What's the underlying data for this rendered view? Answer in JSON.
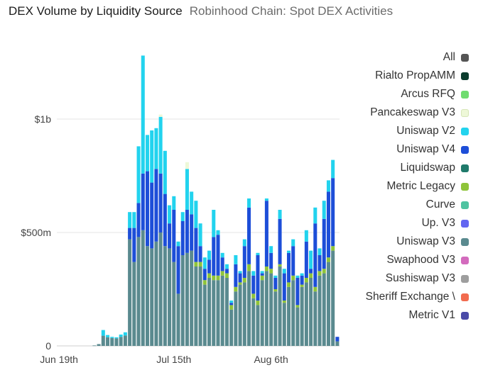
{
  "header": {
    "title": "DEX Volume by Liquidity Source",
    "subtitle": "Robinhood Chain: Spot DEX Activities"
  },
  "legend": [
    {
      "label": "All",
      "color": "#555555"
    },
    {
      "label": "Rialto PropAMM",
      "color": "#0b3d2e"
    },
    {
      "label": "Arcus RFQ",
      "color": "#6fdc6f"
    },
    {
      "label": "Pancakeswap V3",
      "color": "#eef8d8"
    },
    {
      "label": "Uniswap V2",
      "color": "#22d3ee"
    },
    {
      "label": "Uniswap V4",
      "color": "#1d4ed8"
    },
    {
      "label": "Liquidswap",
      "color": "#1f7a6b"
    },
    {
      "label": "Metric Legacy",
      "color": "#8fc43a"
    },
    {
      "label": "Curve",
      "color": "#4fc3a1"
    },
    {
      "label": "Up. V3",
      "color": "#6366f1"
    },
    {
      "label": "Uniswap V3",
      "color": "#5a8a8f"
    },
    {
      "label": "Swaphood V3",
      "color": "#d36bbd"
    },
    {
      "label": "Sushiswap V3",
      "color": "#9e9e9e"
    },
    {
      "label": "Sheriff Exchange \\",
      "color": "#f26b4f"
    },
    {
      "label": "Metric V1",
      "color": "#4b4ba8"
    }
  ],
  "chart_data": {
    "type": "bar",
    "stacked": true,
    "y_tick_labels": [
      "0",
      "$500m",
      "$1b"
    ],
    "ylim": [
      0,
      1400
    ],
    "y_ticks": [
      0,
      500,
      1000
    ],
    "y_unit": "million USD",
    "x_tick_labels": [
      "Jun 19th",
      "Jul 15th",
      "Aug 6th"
    ],
    "x_tick_index": [
      0,
      26,
      48
    ],
    "grid": true,
    "legend_position": "right",
    "series_order": [
      "Uniswap V3",
      "Metric Legacy",
      "Uniswap V4",
      "Uniswap V2",
      "Pancakeswap V3"
    ],
    "series_colors": {
      "Uniswap V3": "#5a8a8f",
      "Metric Legacy": "#8fc43a",
      "Uniswap V4": "#1d4ed8",
      "Uniswap V2": "#22d3ee",
      "Pancakeswap V3": "#eef8d8"
    },
    "days": [
      {
        "Uniswap V3": 0
      },
      {
        "Uniswap V3": 0
      },
      {
        "Uniswap V3": 0
      },
      {
        "Uniswap V3": 0
      },
      {
        "Uniswap V3": 0
      },
      {
        "Uniswap V3": 0
      },
      {
        "Uniswap V3": 0
      },
      {
        "Uniswap V3": 0
      },
      {
        "Uniswap V3": 2
      },
      {
        "Uniswap V3": 8
      },
      {
        "Uniswap V3": 45,
        "Uniswap V2": 25
      },
      {
        "Uniswap V3": 38,
        "Uniswap V2": 10
      },
      {
        "Uniswap V3": 35,
        "Uniswap V2": 5
      },
      {
        "Uniswap V3": 33,
        "Uniswap V2": 5
      },
      {
        "Uniswap V3": 40,
        "Uniswap V2": 10
      },
      {
        "Uniswap V3": 46,
        "Uniswap V2": 14
      },
      {
        "Uniswap V3": 470,
        "Uniswap V4": 50,
        "Uniswap V2": 70
      },
      {
        "Uniswap V3": 370,
        "Uniswap V4": 150,
        "Uniswap V2": 70
      },
      {
        "Uniswap V3": 480,
        "Uniswap V4": 150,
        "Uniswap V2": 250
      },
      {
        "Uniswap V3": 510,
        "Uniswap V4": 250,
        "Uniswap V2": 520
      },
      {
        "Uniswap V3": 440,
        "Uniswap V4": 330,
        "Uniswap V2": 160
      },
      {
        "Uniswap V3": 430,
        "Uniswap V4": 290,
        "Uniswap V2": 230
      },
      {
        "Uniswap V3": 460,
        "Uniswap V4": 320,
        "Uniswap V2": 180
      },
      {
        "Uniswap V3": 500,
        "Uniswap V4": 260,
        "Uniswap V2": 250,
        "Pancakeswap V3": 10
      },
      {
        "Uniswap V3": 440,
        "Uniswap V4": 230,
        "Uniswap V2": 190
      },
      {
        "Uniswap V3": 430,
        "Uniswap V4": 110,
        "Uniswap V2": 80
      },
      {
        "Uniswap V3": 370,
        "Uniswap V4": 230,
        "Uniswap V2": 60
      },
      {
        "Uniswap V3": 230,
        "Uniswap V4": 210,
        "Uniswap V2": 20
      },
      {
        "Uniswap V3": 400,
        "Uniswap V4": 150,
        "Uniswap V2": 40
      },
      {
        "Uniswap V3": 410,
        "Uniswap V4": 190,
        "Uniswap V2": 180,
        "Pancakeswap V3": 30
      },
      {
        "Uniswap V3": 420,
        "Uniswap V4": 160,
        "Uniswap V2": 100
      },
      {
        "Uniswap V3": 350,
        "Metric Legacy": 20,
        "Uniswap V4": 150,
        "Uniswap V2": 120
      },
      {
        "Uniswap V3": 350,
        "Metric Legacy": 20,
        "Uniswap V4": 70,
        "Uniswap V2": 100
      },
      {
        "Uniswap V3": 270,
        "Metric Legacy": 20,
        "Uniswap V4": 50,
        "Uniswap V2": 50
      },
      {
        "Uniswap V3": 300,
        "Metric Legacy": 20,
        "Uniswap V4": 60,
        "Uniswap V2": 40
      },
      {
        "Uniswap V3": 290,
        "Metric Legacy": 20,
        "Uniswap V4": 170,
        "Uniswap V2": 120
      },
      {
        "Uniswap V3": 290,
        "Metric Legacy": 20,
        "Uniswap V4": 180,
        "Uniswap V2": 20
      },
      {
        "Uniswap V3": 310,
        "Metric Legacy": 20,
        "Uniswap V4": 60,
        "Uniswap V2": 20
      },
      {
        "Uniswap V3": 300,
        "Metric Legacy": 20,
        "Uniswap V4": 20,
        "Uniswap V2": 20
      },
      {
        "Uniswap V3": 160,
        "Metric Legacy": 20,
        "Uniswap V4": 10,
        "Uniswap V2": 10
      },
      {
        "Uniswap V3": 240,
        "Metric Legacy": 20,
        "Uniswap V4": 100,
        "Uniswap V2": 40
      },
      {
        "Uniswap V3": 270,
        "Metric Legacy": 10,
        "Uniswap V4": 40,
        "Uniswap V2": 10
      },
      {
        "Uniswap V3": 280,
        "Metric Legacy": 20,
        "Uniswap V4": 140,
        "Uniswap V2": 30
      },
      {
        "Uniswap V3": 330,
        "Metric Legacy": 30,
        "Uniswap V4": 250,
        "Uniswap V2": 40
      },
      {
        "Uniswap V3": 210,
        "Metric Legacy": 20,
        "Uniswap V4": 80,
        "Uniswap V2": 20
      },
      {
        "Uniswap V3": 180,
        "Metric Legacy": 20,
        "Uniswap V4": 200,
        "Uniswap V2": 10
      },
      {
        "Uniswap V3": 290,
        "Metric Legacy": 20,
        "Uniswap V4": 10,
        "Uniswap V2": 10
      },
      {
        "Uniswap V3": 330,
        "Metric Legacy": 20,
        "Uniswap V4": 290,
        "Uniswap V2": 10
      },
      {
        "Uniswap V3": 320,
        "Metric Legacy": 20,
        "Uniswap V4": 70,
        "Uniswap V2": 30
      },
      {
        "Uniswap V3": 240,
        "Metric Legacy": 10,
        "Uniswap V4": 50,
        "Uniswap V2": 10
      },
      {
        "Uniswap V3": 350,
        "Metric Legacy": 10,
        "Uniswap V4": 200,
        "Uniswap V2": 40
      },
      {
        "Uniswap V3": 190,
        "Metric Legacy": 10,
        "Uniswap V4": 120,
        "Uniswap V2": 20
      },
      {
        "Uniswap V3": 260,
        "Metric Legacy": 20,
        "Uniswap V4": 130,
        "Uniswap V2": 10
      },
      {
        "Uniswap V3": 290,
        "Metric Legacy": 20,
        "Uniswap V4": 130,
        "Uniswap V2": 30
      },
      {
        "Uniswap V3": 170,
        "Metric Legacy": 10,
        "Uniswap V4": 120,
        "Uniswap V2": 10
      },
      {
        "Uniswap V3": 260,
        "Metric Legacy": 10,
        "Uniswap V4": 40,
        "Uniswap V2": 10
      },
      {
        "Uniswap V3": 280,
        "Metric Legacy": 20,
        "Uniswap V4": 160,
        "Uniswap V2": 50
      },
      {
        "Uniswap V3": 300,
        "Metric Legacy": 20,
        "Uniswap V4": 20,
        "Uniswap V2": 80
      },
      {
        "Uniswap V3": 240,
        "Metric Legacy": 20,
        "Uniswap V4": 280,
        "Uniswap V2": 70
      },
      {
        "Uniswap V3": 310,
        "Metric Legacy": 20,
        "Uniswap V4": 70,
        "Uniswap V2": 30
      },
      {
        "Uniswap V3": 320,
        "Metric Legacy": 20,
        "Uniswap V4": 220,
        "Uniswap V2": 80
      },
      {
        "Uniswap V3": 370,
        "Metric Legacy": 20,
        "Uniswap V4": 290,
        "Uniswap V2": 50
      },
      {
        "Uniswap V3": 420,
        "Metric Legacy": 20,
        "Uniswap V4": 300,
        "Uniswap V2": 80
      },
      {
        "Uniswap V3": 20,
        "Uniswap V4": 20
      }
    ]
  }
}
